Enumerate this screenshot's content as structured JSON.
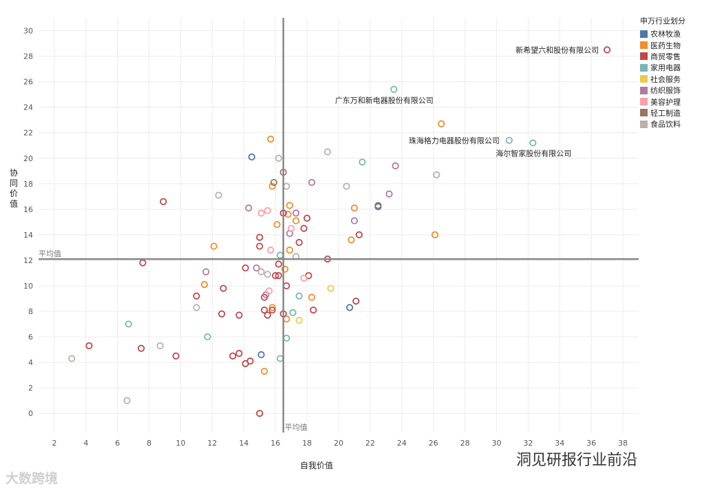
{
  "chart_data": {
    "type": "scatter",
    "xlabel": "自我价值",
    "ylabel": "协同价值",
    "xlim": [
      1,
      39
    ],
    "ylim": [
      -1.5,
      31
    ],
    "xticks": [
      2,
      4,
      6,
      8,
      10,
      12,
      14,
      16,
      18,
      20,
      22,
      24,
      26,
      28,
      30,
      32,
      34,
      36,
      38
    ],
    "yticks": [
      0,
      2,
      4,
      6,
      8,
      10,
      12,
      14,
      16,
      18,
      20,
      22,
      24,
      26,
      28,
      30
    ],
    "grid": true,
    "legend_position": "right",
    "reference_lines": [
      {
        "axis": "x",
        "value": 16.5,
        "label": "平均值"
      },
      {
        "axis": "y",
        "value": 12.1,
        "label": "平均值"
      }
    ],
    "legend": {
      "title": "申万行业划分",
      "items": [
        {
          "name": "农林牧渔",
          "color": "#4e79a7"
        },
        {
          "name": "医药生物",
          "color": "#f28e2b"
        },
        {
          "name": "商贸零售",
          "color": "#c0464b"
        },
        {
          "name": "家用电器",
          "color": "#76b7b2"
        },
        {
          "name": "社会服务",
          "color": "#edc948"
        },
        {
          "name": "纺织服饰",
          "color": "#b07aa1"
        },
        {
          "name": "美容护理",
          "color": "#ff9da7"
        },
        {
          "name": "轻工制造",
          "color": "#9c755f"
        },
        {
          "name": "食品饮料",
          "color": "#bab0ac"
        }
      ]
    },
    "annotations": [
      {
        "text": "新希望六和股份有限公司",
        "x": 37.0,
        "y": 28.5,
        "anchor": "end",
        "dx": -12,
        "dy": 4
      },
      {
        "text": "广东万和新电器股份有限公司",
        "x": 23.5,
        "y": 25.4,
        "anchor": "middle",
        "dx": -14,
        "dy": 20
      },
      {
        "text": "珠海格力电器股份有限公司",
        "x": 30.8,
        "y": 21.4,
        "anchor": "end",
        "dx": -14,
        "dy": 4
      },
      {
        "text": "海尔智家股份有限公司",
        "x": 32.3,
        "y": 21.2,
        "anchor": "end",
        "dx": 56,
        "dy": 19
      }
    ],
    "series": [
      {
        "name": "农林牧渔",
        "color": "#4e79a7",
        "points": [
          [
            14.5,
            20.1
          ],
          [
            20.7,
            8.3
          ],
          [
            15.1,
            4.6
          ],
          [
            22.5,
            16.2
          ]
        ]
      },
      {
        "name": "医药生物",
        "color": "#f28e2b",
        "points": [
          [
            15.7,
            21.5
          ],
          [
            26.5,
            22.7
          ],
          [
            15.8,
            17.8
          ],
          [
            16.1,
            14.8
          ],
          [
            16.9,
            16.3
          ],
          [
            16.8,
            15.6
          ],
          [
            17.3,
            15.1
          ],
          [
            16.9,
            12.8
          ],
          [
            11.5,
            10.1
          ],
          [
            12.1,
            13.1
          ],
          [
            21.0,
            16.1
          ],
          [
            26.1,
            14.0
          ],
          [
            20.8,
            13.6
          ],
          [
            15.8,
            8.3
          ],
          [
            18.3,
            9.1
          ],
          [
            15.3,
            3.3
          ],
          [
            16.7,
            7.4
          ],
          [
            16.6,
            11.3
          ]
        ]
      },
      {
        "name": "商贸零售",
        "color": "#c0464b",
        "points": [
          [
            37.0,
            28.5
          ],
          [
            8.9,
            16.6
          ],
          [
            7.6,
            11.8
          ],
          [
            4.2,
            5.3
          ],
          [
            7.5,
            5.1
          ],
          [
            9.7,
            4.5
          ],
          [
            11.0,
            9.2
          ],
          [
            12.7,
            9.8
          ],
          [
            12.6,
            7.8
          ],
          [
            13.7,
            7.7
          ],
          [
            13.3,
            4.5
          ],
          [
            13.7,
            4.7
          ],
          [
            14.1,
            3.9
          ],
          [
            14.4,
            4.1
          ],
          [
            15.0,
            13.1
          ],
          [
            15.0,
            13.8
          ],
          [
            14.1,
            11.4
          ],
          [
            15.3,
            9.1
          ],
          [
            15.3,
            8.1
          ],
          [
            15.5,
            7.7
          ],
          [
            15.8,
            8.1
          ],
          [
            16.0,
            10.8
          ],
          [
            16.2,
            10.8
          ],
          [
            16.2,
            11.7
          ],
          [
            16.5,
            7.8
          ],
          [
            16.7,
            10.0
          ],
          [
            17.5,
            13.4
          ],
          [
            17.8,
            14.5
          ],
          [
            18.0,
            15.3
          ],
          [
            18.1,
            10.8
          ],
          [
            18.4,
            8.1
          ],
          [
            19.3,
            12.1
          ],
          [
            21.3,
            14.0
          ],
          [
            21.1,
            8.8
          ],
          [
            15.0,
            0.0
          ],
          [
            16.5,
            15.7
          ]
        ]
      },
      {
        "name": "家用电器",
        "color": "#76b7b2",
        "points": [
          [
            23.5,
            25.4
          ],
          [
            30.8,
            21.4
          ],
          [
            32.3,
            21.2
          ],
          [
            21.5,
            19.7
          ],
          [
            6.7,
            7.0
          ],
          [
            11.7,
            6.0
          ],
          [
            16.3,
            4.3
          ],
          [
            16.7,
            5.9
          ],
          [
            17.1,
            7.9
          ],
          [
            17.5,
            9.2
          ],
          [
            16.3,
            12.4
          ]
        ]
      },
      {
        "name": "社会服务",
        "color": "#edc948",
        "points": [
          [
            19.5,
            9.8
          ],
          [
            17.5,
            7.3
          ]
        ]
      },
      {
        "name": "纺织服饰",
        "color": "#b07aa1",
        "points": [
          [
            23.6,
            19.4
          ],
          [
            23.2,
            17.2
          ],
          [
            21.0,
            15.1
          ],
          [
            18.3,
            18.1
          ],
          [
            14.3,
            16.1
          ],
          [
            11.6,
            11.1
          ],
          [
            14.8,
            11.4
          ],
          [
            16.9,
            14.1
          ],
          [
            17.3,
            15.7
          ],
          [
            15.4,
            9.3
          ]
        ]
      },
      {
        "name": "美容护理",
        "color": "#ff9da7",
        "points": [
          [
            15.1,
            15.7
          ],
          [
            15.5,
            15.9
          ],
          [
            15.6,
            9.6
          ],
          [
            15.7,
            12.8
          ],
          [
            17.8,
            10.6
          ],
          [
            17.0,
            14.5
          ]
        ]
      },
      {
        "name": "轻工制造",
        "color": "#9c755f",
        "points": [
          [
            16.5,
            18.9
          ],
          [
            15.9,
            18.1
          ],
          [
            22.5,
            16.3
          ]
        ]
      },
      {
        "name": "食品饮料",
        "color": "#bab0ac",
        "points": [
          [
            16.2,
            20.0
          ],
          [
            19.3,
            20.5
          ],
          [
            26.2,
            18.7
          ],
          [
            20.5,
            17.8
          ],
          [
            12.4,
            17.1
          ],
          [
            16.7,
            17.8
          ],
          [
            15.1,
            11.1
          ],
          [
            15.5,
            10.9
          ],
          [
            17.3,
            12.3
          ],
          [
            11.0,
            8.3
          ],
          [
            8.7,
            5.3
          ],
          [
            3.1,
            4.3
          ],
          [
            6.6,
            1.0
          ]
        ]
      }
    ]
  },
  "watermark_left": "大数跨境",
  "watermark_right": "洞见研报行业前沿"
}
